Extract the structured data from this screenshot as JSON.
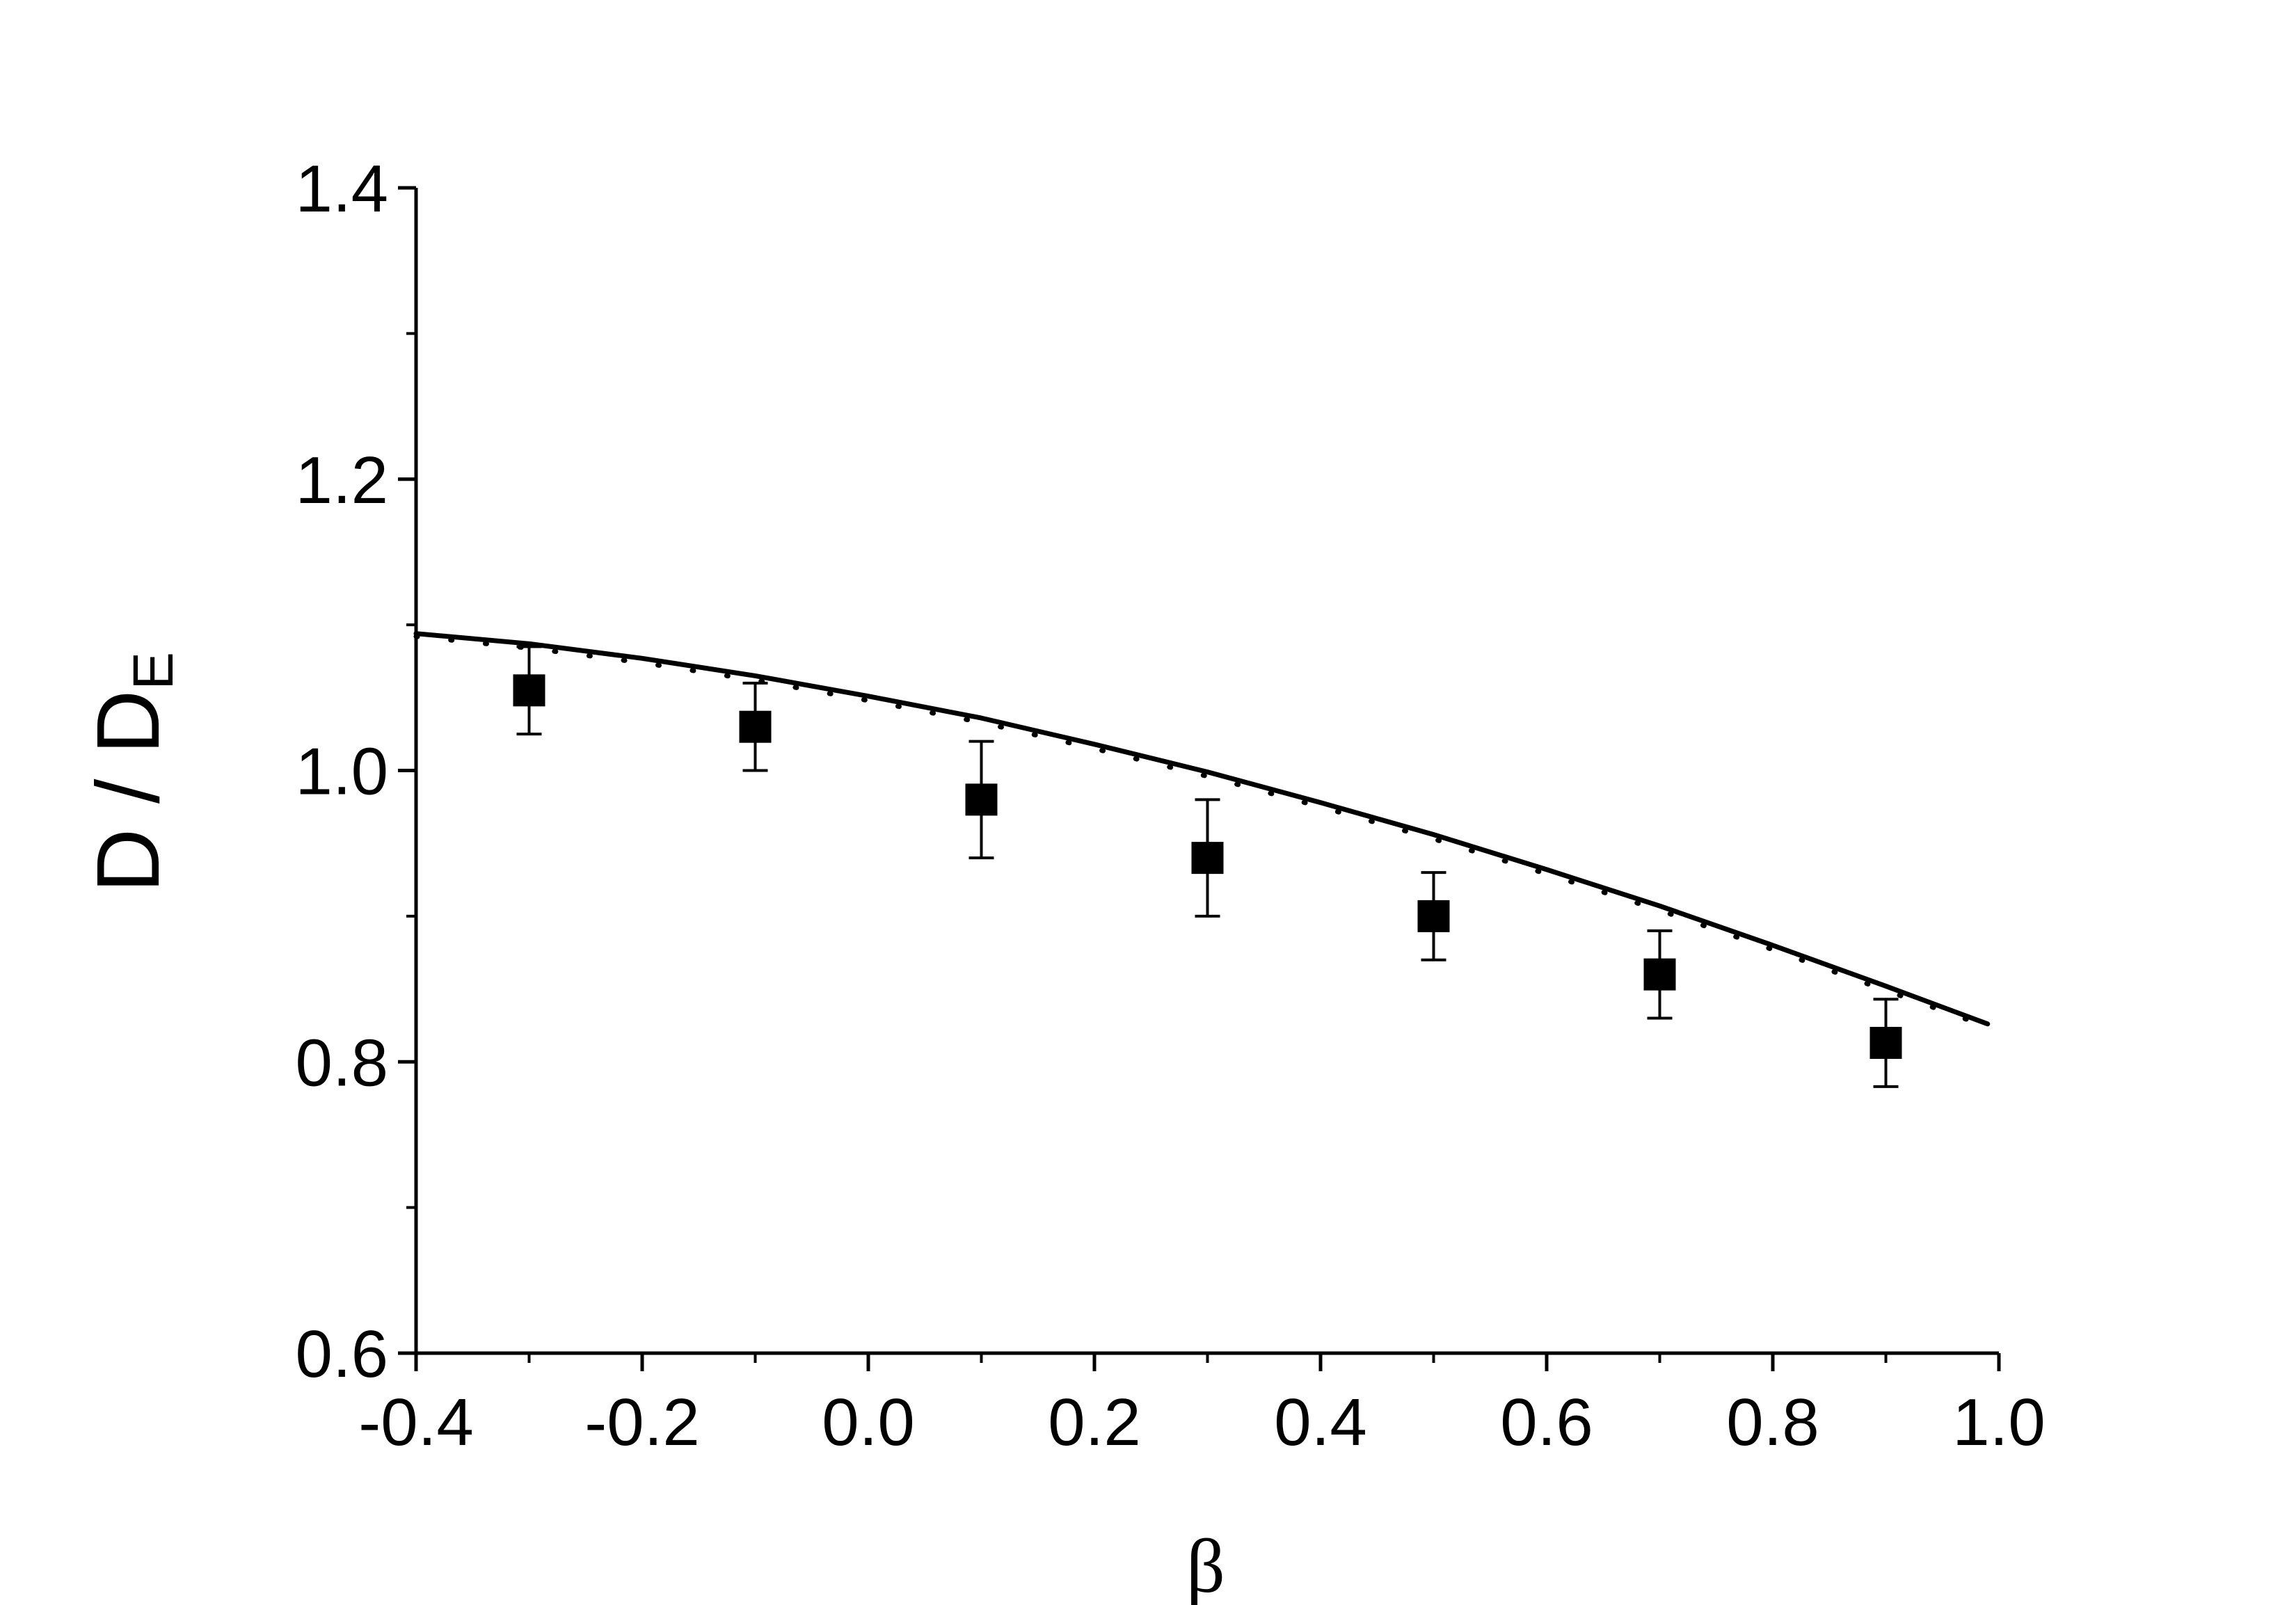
{
  "chart_data": {
    "type": "scatter",
    "xlabel": "β",
    "ylabel": "D / D",
    "ylabel_subscript": "E",
    "xlim": [
      -0.4,
      1.0
    ],
    "ylim": [
      0.6,
      1.4
    ],
    "x_ticks": [
      -0.4,
      -0.2,
      0.0,
      0.2,
      0.4,
      0.6,
      0.8,
      1.0
    ],
    "x_tick_labels": [
      "-0.4",
      "-0.2",
      "0.0",
      "0.2",
      "0.4",
      "0.6",
      "0.8",
      "1.0"
    ],
    "x_minor_ticks": [
      -0.3,
      -0.1,
      0.1,
      0.3,
      0.5,
      0.7,
      0.9
    ],
    "y_ticks": [
      0.6,
      0.8,
      1.0,
      1.2,
      1.4
    ],
    "y_tick_labels": [
      "0.6",
      "0.8",
      "1.0",
      "1.2",
      "1.4"
    ],
    "y_minor_ticks": [
      0.7,
      0.9,
      1.1,
      1.3
    ],
    "grid": false,
    "series": [
      {
        "type": "scatter",
        "marker": "square",
        "color": "#000000",
        "x": [
          -0.3,
          -0.1,
          0.1,
          0.3,
          0.5,
          0.7,
          0.9
        ],
        "y": [
          1.055,
          1.03,
          0.98,
          0.94,
          0.9,
          0.86,
          0.813
        ],
        "yerr": [
          0.03,
          0.03,
          0.04,
          0.04,
          0.03,
          0.03,
          0.03
        ]
      },
      {
        "type": "line",
        "color": "#000000",
        "x": [
          -0.4,
          -0.3,
          -0.2,
          -0.1,
          0.0,
          0.1,
          0.2,
          0.3,
          0.4,
          0.5,
          0.6,
          0.7,
          0.8,
          0.9,
          0.99
        ],
        "y": [
          1.094,
          1.087,
          1.077,
          1.065,
          1.051,
          1.036,
          1.018,
          0.999,
          0.978,
          0.956,
          0.932,
          0.907,
          0.88,
          0.852,
          0.826
        ]
      },
      {
        "type": "line",
        "style": "dotted",
        "color": "#000000",
        "x": [
          -0.4,
          -0.3,
          -0.2,
          -0.1,
          0.0,
          0.1,
          0.2,
          0.3,
          0.4,
          0.5,
          0.6,
          0.7,
          0.8,
          0.9,
          0.99
        ],
        "y": [
          1.092,
          1.084,
          1.074,
          1.062,
          1.048,
          1.033,
          1.015,
          0.996,
          0.975,
          0.953,
          0.929,
          0.904,
          0.877,
          0.849,
          0.824
        ]
      }
    ]
  }
}
